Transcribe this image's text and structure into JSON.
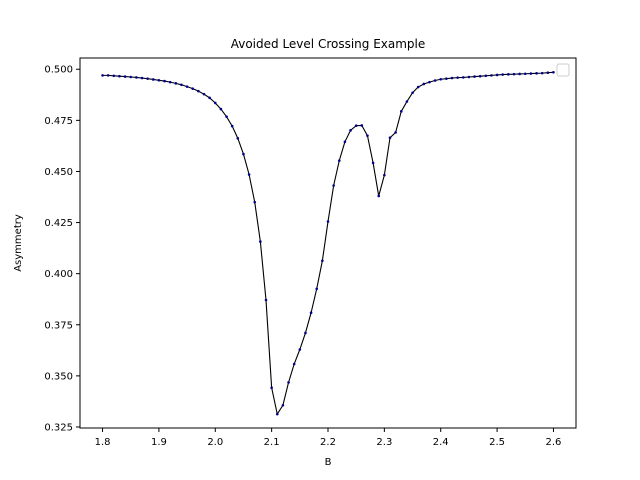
{
  "chart_data": {
    "type": "line",
    "title": "Avoided Level Crossing Example",
    "xlabel": "B",
    "ylabel": "Asymmetry",
    "xlim": [
      1.76,
      2.64
    ],
    "ylim": [
      0.3245,
      0.5055
    ],
    "xticks": [
      "1.8",
      "1.9",
      "2.0",
      "2.1",
      "2.2",
      "2.3",
      "2.4",
      "2.5",
      "2.6"
    ],
    "yticks": [
      "0.325",
      "0.350",
      "0.375",
      "0.400",
      "0.425",
      "0.450",
      "0.475",
      "0.500"
    ],
    "grid": false,
    "legend": "top-right",
    "line_color": "#000000",
    "marker_color": "#00008b",
    "series": [
      {
        "x": [
          1.8,
          1.81,
          1.82,
          1.83,
          1.84,
          1.85,
          1.86,
          1.87,
          1.88,
          1.89,
          1.9,
          1.91,
          1.92,
          1.93,
          1.94,
          1.95,
          1.96,
          1.97,
          1.98,
          1.99,
          2.0,
          2.01,
          2.02,
          2.03,
          2.04,
          2.05,
          2.06,
          2.07,
          2.08,
          2.09,
          2.1,
          2.11,
          2.12,
          2.13,
          2.14,
          2.15,
          2.16,
          2.17,
          2.18,
          2.19,
          2.2,
          2.21,
          2.22,
          2.23,
          2.24,
          2.25,
          2.26,
          2.27,
          2.28,
          2.29,
          2.3,
          2.31,
          2.32,
          2.33,
          2.34,
          2.35,
          2.36,
          2.37,
          2.38,
          2.39,
          2.4,
          2.41,
          2.42,
          2.43,
          2.44,
          2.45,
          2.46,
          2.47,
          2.48,
          2.49,
          2.5,
          2.51,
          2.52,
          2.53,
          2.54,
          2.55,
          2.56,
          2.57,
          2.58,
          2.59,
          2.6
        ],
        "y": [
          0.497,
          0.497,
          0.4968,
          0.4966,
          0.4964,
          0.4962,
          0.496,
          0.4957,
          0.4954,
          0.495,
          0.4946,
          0.4942,
          0.4937,
          0.4931,
          0.4924,
          0.4915,
          0.4905,
          0.4893,
          0.4878,
          0.486,
          0.4835,
          0.4805,
          0.4768,
          0.4722,
          0.4662,
          0.4585,
          0.4485,
          0.435,
          0.4157,
          0.3871,
          0.3442,
          0.3313,
          0.3356,
          0.3468,
          0.3558,
          0.3629,
          0.371,
          0.3809,
          0.3926,
          0.4063,
          0.4255,
          0.4431,
          0.4553,
          0.4645,
          0.4701,
          0.4724,
          0.4725,
          0.4675,
          0.4542,
          0.438,
          0.4482,
          0.4665,
          0.4691,
          0.4794,
          0.4842,
          0.4885,
          0.4913,
          0.4928,
          0.4937,
          0.4945,
          0.4951,
          0.4954,
          0.4957,
          0.4959,
          0.496,
          0.4962,
          0.4964,
          0.4966,
          0.4968,
          0.497,
          0.4972,
          0.4974,
          0.4975,
          0.4976,
          0.4977,
          0.4978,
          0.4979,
          0.498,
          0.4981,
          0.4983,
          0.4985
        ]
      }
    ]
  }
}
